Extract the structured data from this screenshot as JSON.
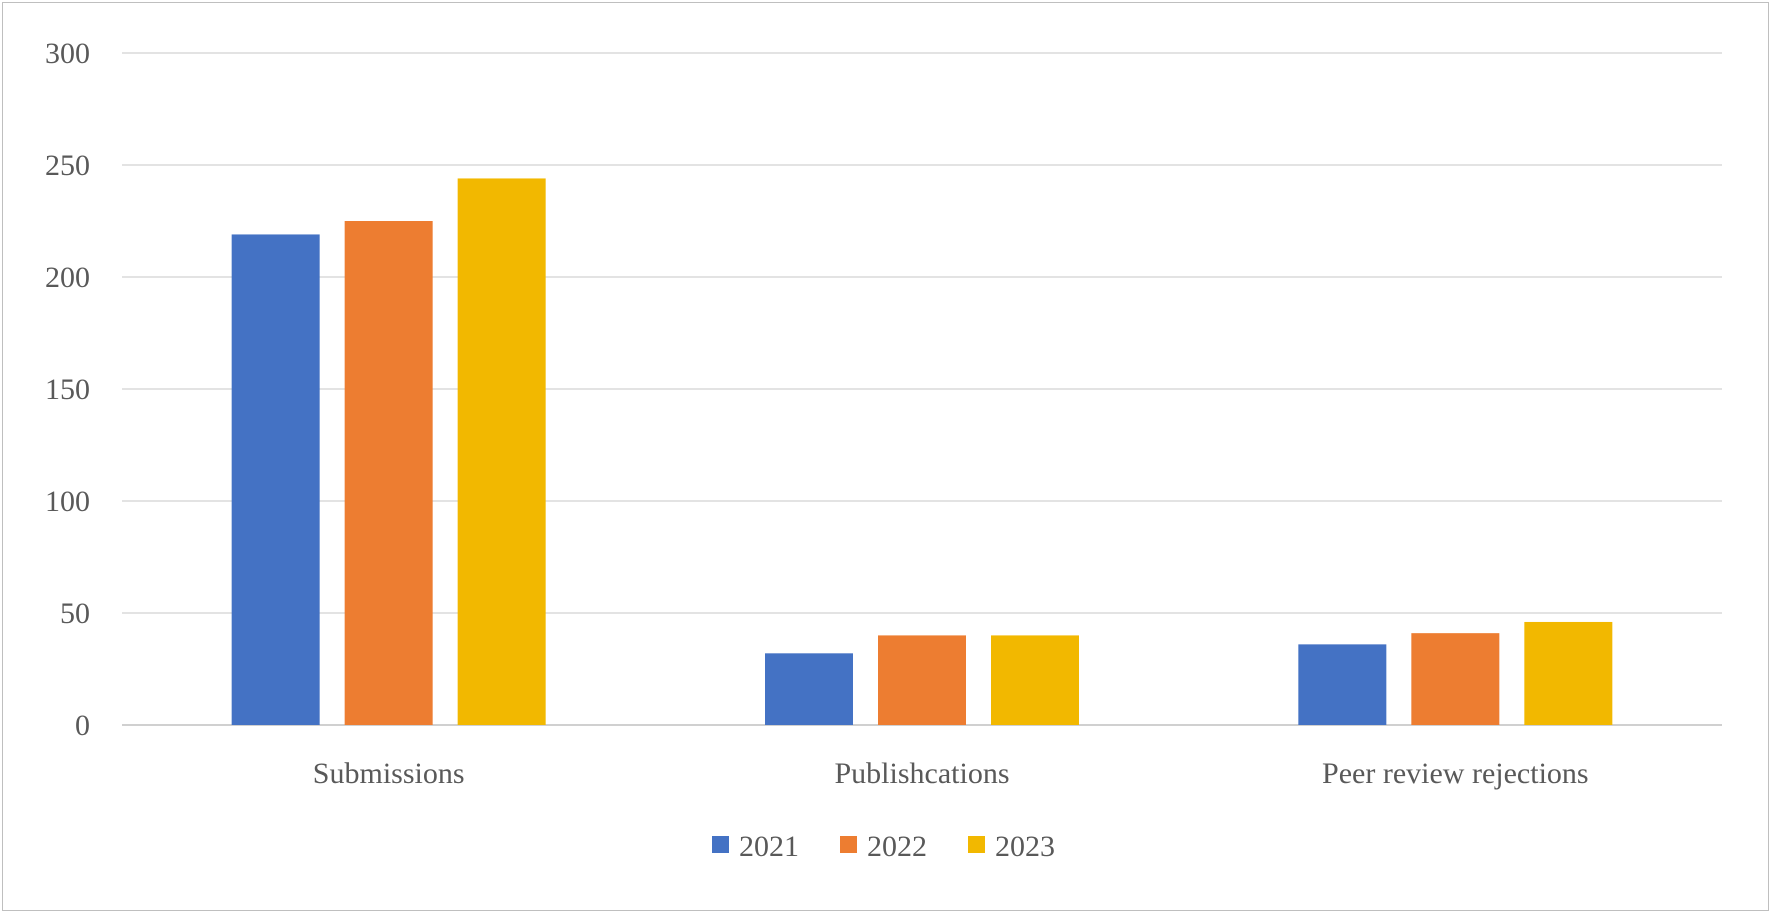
{
  "chart_data": {
    "type": "bar",
    "title": "",
    "xlabel": "",
    "ylabel": "",
    "categories": [
      "Submissions",
      "Publishcations",
      "Peer review rejections"
    ],
    "series": [
      {
        "name": "2021",
        "color": "#4472C4",
        "values": [
          219,
          32,
          36
        ]
      },
      {
        "name": "2022",
        "color": "#ED7D31",
        "values": [
          225,
          40,
          41
        ]
      },
      {
        "name": "2023",
        "color": "#F2B800",
        "values": [
          244,
          40,
          46
        ]
      }
    ],
    "ylim": [
      0,
      300
    ],
    "yticks": [
      0,
      50,
      100,
      150,
      200,
      250,
      300
    ],
    "grid": true,
    "legend": "bottom"
  }
}
